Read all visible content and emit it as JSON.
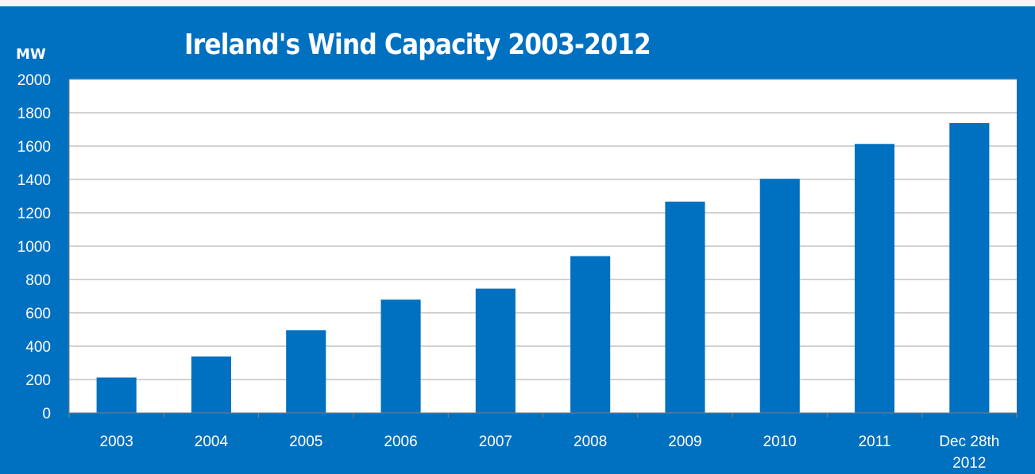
{
  "chart_data": {
    "type": "bar",
    "title": "Ireland's Wind Capacity 2003-2012",
    "ylabel": "MW",
    "xlabel": "",
    "ylim": [
      0,
      2000
    ],
    "yticks": [
      0,
      200,
      400,
      600,
      800,
      1000,
      1200,
      1400,
      1600,
      1800,
      2000
    ],
    "categories": [
      [
        "2003"
      ],
      [
        "2004"
      ],
      [
        "2005"
      ],
      [
        "2006"
      ],
      [
        "2007"
      ],
      [
        "2008"
      ],
      [
        "2009"
      ],
      [
        "2010"
      ],
      [
        "2011"
      ],
      [
        "Dec 28th",
        "2012"
      ]
    ],
    "values": [
      212,
      338,
      495,
      679,
      745,
      940,
      1267,
      1404,
      1613,
      1738
    ],
    "grid": true,
    "legend": "none"
  },
  "colors": {
    "background": "#0070c0",
    "plot_area": "#ffffff",
    "bar": "#0070c0",
    "gridline": "#a6a6a6",
    "text": "#ffffff"
  }
}
